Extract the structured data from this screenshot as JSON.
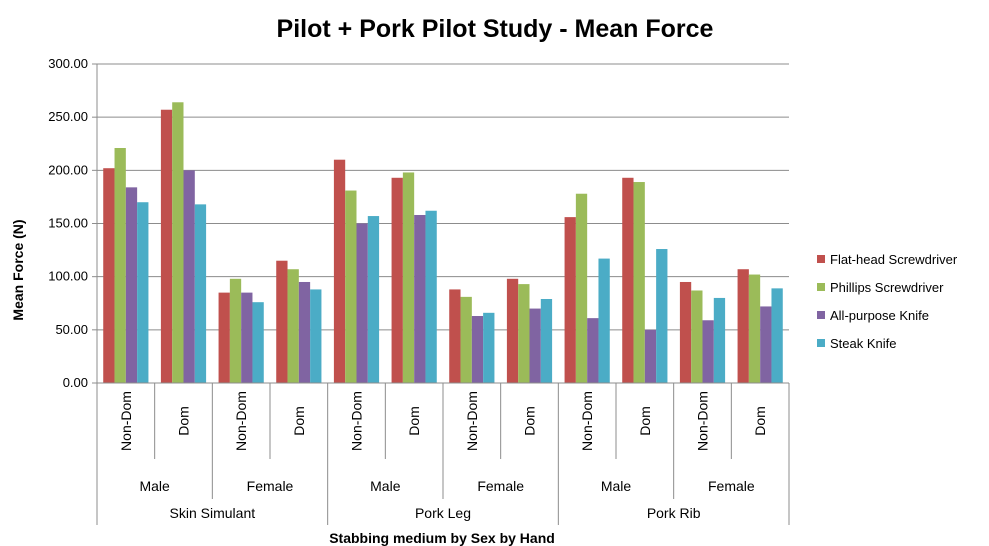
{
  "chart_data": {
    "type": "bar",
    "title": "Pilot + Pork Pilot Study - Mean Force",
    "xlabel": "Stabbing medium by Sex by Hand",
    "ylabel": "Mean Force (N)",
    "ylim": [
      0,
      300
    ],
    "yticks": [
      "0.00",
      "50.00",
      "100.00",
      "150.00",
      "200.00",
      "250.00",
      "300.00"
    ],
    "grid": true,
    "legend_position": "right",
    "media": [
      "Skin Simulant",
      "Pork Leg",
      "Pork Rib"
    ],
    "sexes": [
      "Male",
      "Female"
    ],
    "hands": [
      "Non-Dom",
      "Dom"
    ],
    "categories": [
      "Skin Simulant / Male / Non-Dom",
      "Skin Simulant / Male / Dom",
      "Skin Simulant / Female / Non-Dom",
      "Skin Simulant / Female / Dom",
      "Pork Leg / Male / Non-Dom",
      "Pork Leg / Male / Dom",
      "Pork Leg / Female / Non-Dom",
      "Pork Leg / Female / Dom",
      "Pork Rib / Male / Non-Dom",
      "Pork Rib / Male / Dom",
      "Pork Rib / Female / Non-Dom",
      "Pork Rib / Female / Dom"
    ],
    "series": [
      {
        "name": "Flat-head Screwdriver",
        "color": "#c0504d",
        "values": [
          202,
          257,
          85,
          115,
          210,
          193,
          88,
          98,
          156,
          193,
          95,
          107
        ]
      },
      {
        "name": "Phillips Screwdriver",
        "color": "#9bbb59",
        "values": [
          221,
          264,
          98,
          107,
          181,
          198,
          81,
          93,
          178,
          189,
          87,
          102
        ]
      },
      {
        "name": "All-purpose Knife",
        "color": "#8064a2",
        "values": [
          184,
          200,
          85,
          95,
          150,
          158,
          63,
          70,
          61,
          50,
          59,
          72
        ]
      },
      {
        "name": "Steak Knife",
        "color": "#4bacc6",
        "values": [
          170,
          168,
          76,
          88,
          157,
          162,
          66,
          79,
          117,
          126,
          80,
          89
        ]
      }
    ]
  }
}
